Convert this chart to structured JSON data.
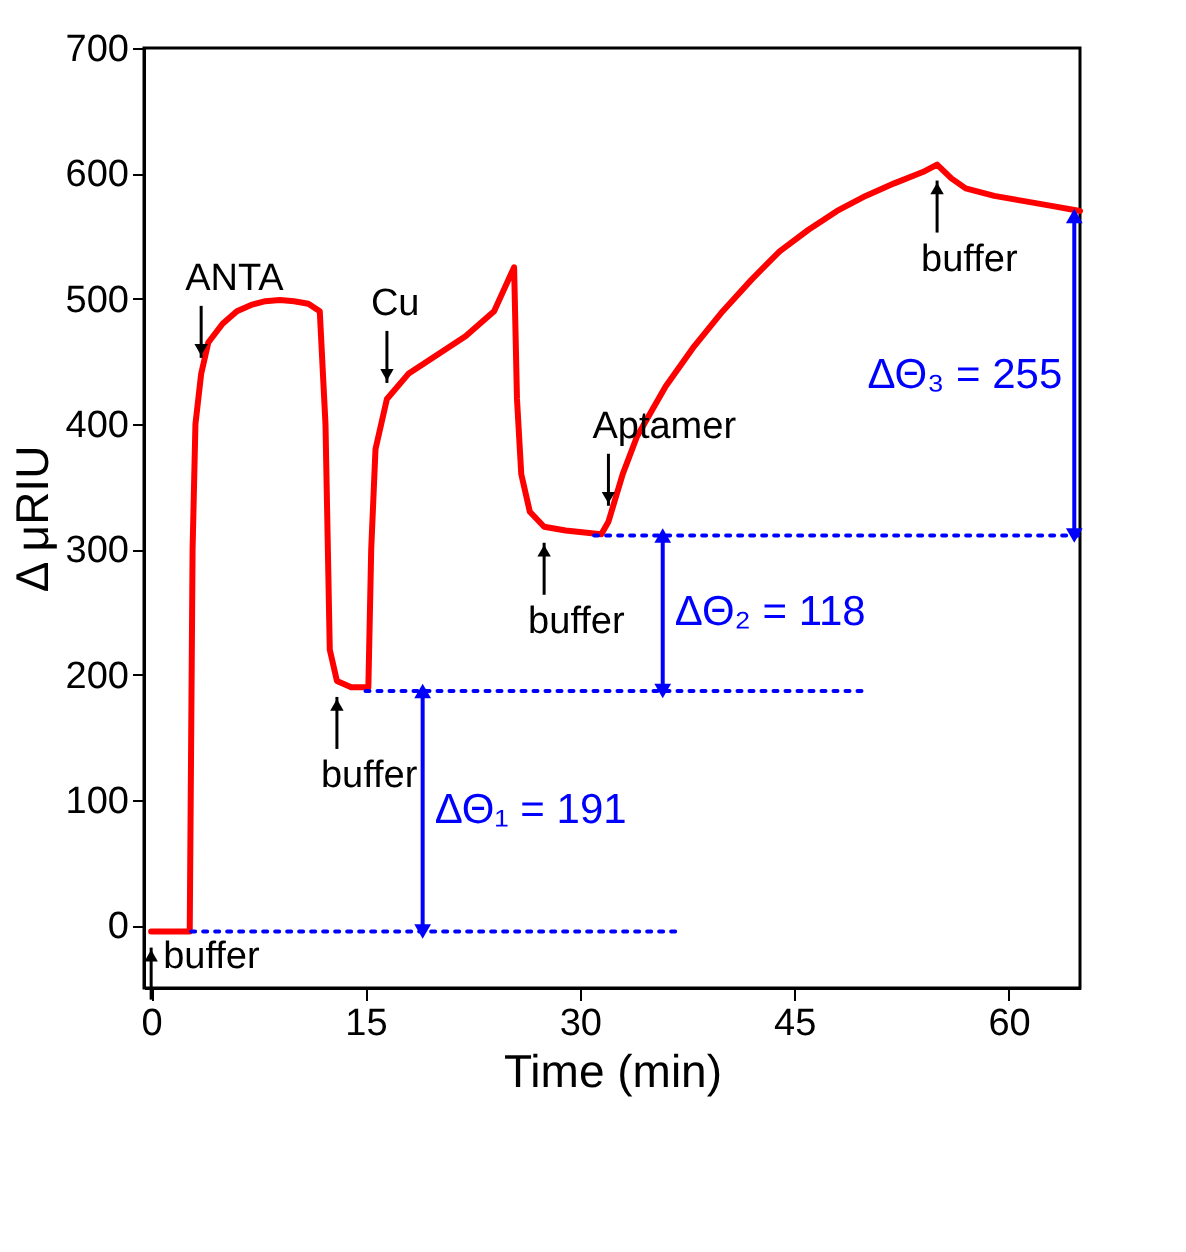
{
  "chart_data": {
    "type": "line",
    "xlabel": "Time (min)",
    "ylabel": "Δ μRIU",
    "xlim": [
      -0.5,
      65
    ],
    "xticks": [
      0,
      15,
      30,
      45,
      60
    ],
    "ylim": [
      -50,
      700
    ],
    "yticks": [
      0,
      100,
      200,
      300,
      400,
      500,
      600,
      700
    ],
    "grid": false,
    "series": [
      {
        "color": "#ff0000",
        "line_style": "solid",
        "marker": "none",
        "x": [
          0,
          2.7,
          2.9,
          3.1,
          3.5,
          4,
          5,
          6,
          7,
          8,
          9,
          10,
          11,
          11.8,
          12.2,
          12.5,
          13,
          14,
          15.2,
          15.4,
          15.7,
          16.5,
          18,
          20,
          22,
          24,
          25.4,
          25.6,
          25.9,
          26.5,
          27.5,
          29,
          31.5,
          32,
          33,
          34,
          36,
          38,
          40,
          42,
          44,
          46,
          48,
          50,
          52,
          54,
          55,
          56,
          57,
          59,
          61,
          63,
          65
        ],
        "values": [
          -5,
          -5,
          300,
          400,
          440,
          465,
          480,
          490,
          495,
          498,
          499,
          498,
          496,
          490,
          400,
          220,
          195,
          190,
          190,
          300,
          380,
          420,
          440,
          455,
          470,
          490,
          525,
          420,
          360,
          330,
          318,
          315,
          312,
          322,
          360,
          390,
          430,
          462,
          490,
          515,
          538,
          555,
          570,
          582,
          592,
          601,
          607,
          596,
          588,
          582,
          578,
          574,
          570
        ]
      },
      {
        "color": "#0000ff",
        "line_style": "dotted",
        "marker": "none",
        "x": [
          2.8,
          37
        ],
        "values": [
          -5,
          -5
        ]
      },
      {
        "color": "#0000ff",
        "line_style": "dotted",
        "marker": "none",
        "x": [
          15,
          50
        ],
        "values": [
          187,
          187
        ]
      },
      {
        "color": "#0000ff",
        "line_style": "dotted",
        "marker": "none",
        "x": [
          31,
          65
        ],
        "values": [
          311,
          311
        ]
      },
      {
        "name": "ΔΘ₁ = 191",
        "color": "#0000ff",
        "line_style": "solid",
        "marker": "triangle",
        "x": [
          19,
          19
        ],
        "values": [
          -5,
          187
        ]
      },
      {
        "name": "ΔΘ₂ = 118",
        "color": "#0000ff",
        "line_style": "solid",
        "marker": "triangle",
        "x": [
          35.8,
          35.8
        ],
        "values": [
          187,
          311
        ]
      },
      {
        "name": "ΔΘ₃ = 255",
        "color": "#0000ff",
        "line_style": "solid",
        "marker": "triangle",
        "x": [
          64.6,
          64.6
        ],
        "values": [
          311,
          566
        ]
      }
    ],
    "annotations": [
      {
        "text": "ANTA",
        "x": 3.5,
        "y": 440
      },
      {
        "text": "Cu",
        "x": 16.5,
        "y": 420
      },
      {
        "text": "Aptamer",
        "x": 32,
        "y": 322
      },
      {
        "text": "buffer",
        "x": 0,
        "y": -5
      },
      {
        "text": "buffer",
        "x": 13,
        "y": 195
      },
      {
        "text": "buffer",
        "x": 27.5,
        "y": 318
      },
      {
        "text": "buffer",
        "x": 55,
        "y": 607
      }
    ]
  }
}
